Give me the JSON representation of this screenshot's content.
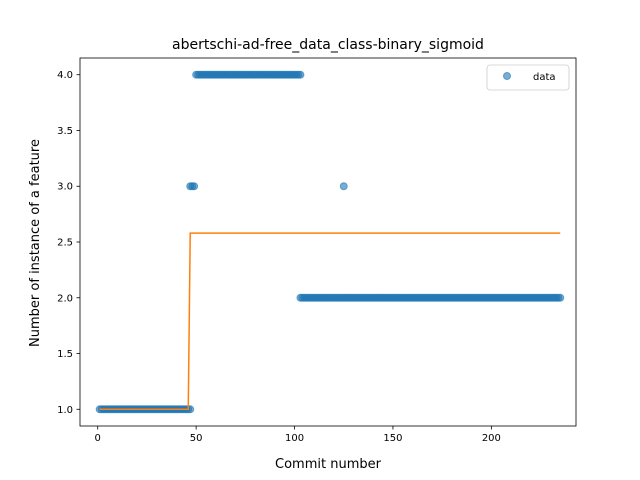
{
  "chart_data": {
    "type": "scatter",
    "title": "abertschi-ad-free_data_class-binary_sigmoid",
    "xlabel": "Commit number",
    "ylabel": "Number of instance of a feature",
    "xlim": [
      -9,
      243
    ],
    "ylim": [
      0.85,
      4.15
    ],
    "xticks": [
      0,
      50,
      100,
      150,
      200
    ],
    "yticks": [
      1.0,
      1.5,
      2.0,
      2.5,
      3.0,
      3.5,
      4.0
    ],
    "ytick_labels": [
      "1.0",
      "1.5",
      "2.0",
      "2.5",
      "3.0",
      "3.5",
      "4.0"
    ],
    "legend": {
      "position": "top-right",
      "entries": [
        "data"
      ]
    },
    "grid": false,
    "series": [
      {
        "name": "data",
        "kind": "scatter",
        "color": "#1f77b4",
        "segments": [
          {
            "x_start": 1,
            "x_end": 46,
            "y": 1
          },
          {
            "x_start": 47,
            "x_end": 49,
            "y": 3
          },
          {
            "x_start": 50,
            "x_end": 103,
            "y": 4
          },
          {
            "x_start": 103,
            "x_end": 235,
            "y": 2
          }
        ],
        "points": [
          [
            125,
            3
          ],
          [
            47,
            1
          ]
        ]
      },
      {
        "name": "",
        "kind": "line",
        "color": "#ff7f0e",
        "x": [
          1,
          46,
          47,
          235
        ],
        "y": [
          1.0,
          1.0,
          2.58,
          2.58
        ]
      }
    ]
  }
}
